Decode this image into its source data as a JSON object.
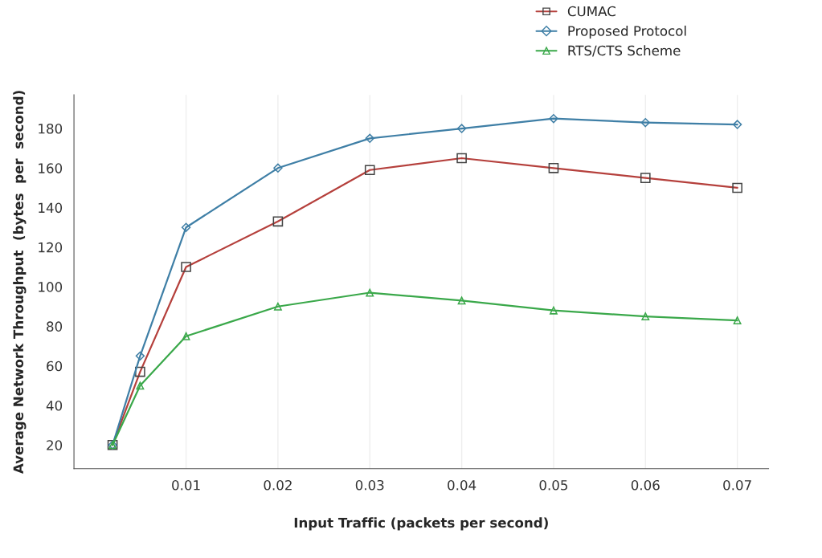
{
  "chart_data": {
    "type": "line",
    "xlabel": "Input Traffic (packets per second)",
    "ylabel": "Average Network Throughput  (bytes  per  second)",
    "x": [
      0.002,
      0.005,
      0.01,
      0.02,
      0.03,
      0.04,
      0.05,
      0.06,
      0.07
    ],
    "series": [
      {
        "name": "CUMAC",
        "color": "#b5403c",
        "marker": "square",
        "values": [
          20,
          57,
          110,
          133,
          159,
          165,
          160,
          155,
          150
        ]
      },
      {
        "name": "Proposed Protocol",
        "color": "#3f7fa6",
        "marker": "diamond",
        "values": [
          20,
          65,
          130,
          160,
          175,
          180,
          185,
          183,
          182
        ]
      },
      {
        "name": "RTS/CTS Scheme",
        "color": "#3aa84a",
        "marker": "triangle",
        "values": [
          20,
          50,
          75,
          90,
          97,
          93,
          88,
          85,
          83
        ]
      }
    ],
    "xlim": [
      -0.0022,
      0.0734
    ],
    "ylim": [
      8,
      197
    ],
    "xticks": [
      0.01,
      0.02,
      0.03,
      0.04,
      0.05,
      0.06,
      0.07
    ],
    "yticks": [
      20,
      40,
      60,
      80,
      100,
      120,
      140,
      160,
      180
    ],
    "grid": "x",
    "legend": "top right",
    "line_style": "solid"
  }
}
